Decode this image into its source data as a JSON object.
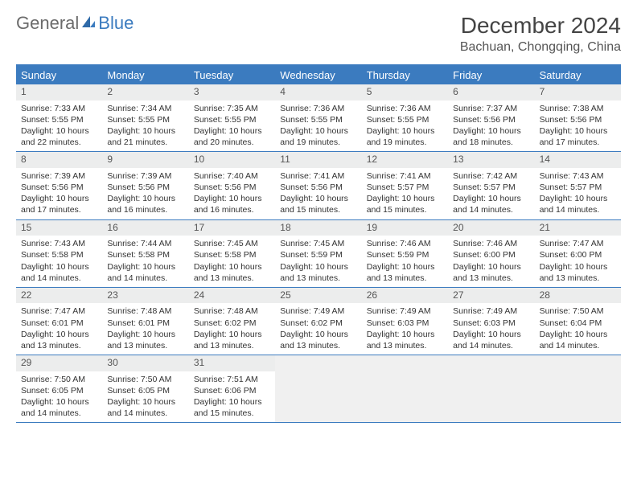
{
  "logo": {
    "part1": "General",
    "part2": "Blue"
  },
  "title": "December 2024",
  "location": "Bachuan, Chongqing, China",
  "colors": {
    "accent": "#3b7bbf",
    "header_text": "#ffffff",
    "daynum_bg": "#eceded",
    "text": "#333333",
    "bg": "#ffffff"
  },
  "day_names": [
    "Sunday",
    "Monday",
    "Tuesday",
    "Wednesday",
    "Thursday",
    "Friday",
    "Saturday"
  ],
  "weeks": [
    [
      {
        "n": "1",
        "sr": "7:33 AM",
        "ss": "5:55 PM",
        "dl": "10 hours and 22 minutes."
      },
      {
        "n": "2",
        "sr": "7:34 AM",
        "ss": "5:55 PM",
        "dl": "10 hours and 21 minutes."
      },
      {
        "n": "3",
        "sr": "7:35 AM",
        "ss": "5:55 PM",
        "dl": "10 hours and 20 minutes."
      },
      {
        "n": "4",
        "sr": "7:36 AM",
        "ss": "5:55 PM",
        "dl": "10 hours and 19 minutes."
      },
      {
        "n": "5",
        "sr": "7:36 AM",
        "ss": "5:55 PM",
        "dl": "10 hours and 19 minutes."
      },
      {
        "n": "6",
        "sr": "7:37 AM",
        "ss": "5:56 PM",
        "dl": "10 hours and 18 minutes."
      },
      {
        "n": "7",
        "sr": "7:38 AM",
        "ss": "5:56 PM",
        "dl": "10 hours and 17 minutes."
      }
    ],
    [
      {
        "n": "8",
        "sr": "7:39 AM",
        "ss": "5:56 PM",
        "dl": "10 hours and 17 minutes."
      },
      {
        "n": "9",
        "sr": "7:39 AM",
        "ss": "5:56 PM",
        "dl": "10 hours and 16 minutes."
      },
      {
        "n": "10",
        "sr": "7:40 AM",
        "ss": "5:56 PM",
        "dl": "10 hours and 16 minutes."
      },
      {
        "n": "11",
        "sr": "7:41 AM",
        "ss": "5:56 PM",
        "dl": "10 hours and 15 minutes."
      },
      {
        "n": "12",
        "sr": "7:41 AM",
        "ss": "5:57 PM",
        "dl": "10 hours and 15 minutes."
      },
      {
        "n": "13",
        "sr": "7:42 AM",
        "ss": "5:57 PM",
        "dl": "10 hours and 14 minutes."
      },
      {
        "n": "14",
        "sr": "7:43 AM",
        "ss": "5:57 PM",
        "dl": "10 hours and 14 minutes."
      }
    ],
    [
      {
        "n": "15",
        "sr": "7:43 AM",
        "ss": "5:58 PM",
        "dl": "10 hours and 14 minutes."
      },
      {
        "n": "16",
        "sr": "7:44 AM",
        "ss": "5:58 PM",
        "dl": "10 hours and 14 minutes."
      },
      {
        "n": "17",
        "sr": "7:45 AM",
        "ss": "5:58 PM",
        "dl": "10 hours and 13 minutes."
      },
      {
        "n": "18",
        "sr": "7:45 AM",
        "ss": "5:59 PM",
        "dl": "10 hours and 13 minutes."
      },
      {
        "n": "19",
        "sr": "7:46 AM",
        "ss": "5:59 PM",
        "dl": "10 hours and 13 minutes."
      },
      {
        "n": "20",
        "sr": "7:46 AM",
        "ss": "6:00 PM",
        "dl": "10 hours and 13 minutes."
      },
      {
        "n": "21",
        "sr": "7:47 AM",
        "ss": "6:00 PM",
        "dl": "10 hours and 13 minutes."
      }
    ],
    [
      {
        "n": "22",
        "sr": "7:47 AM",
        "ss": "6:01 PM",
        "dl": "10 hours and 13 minutes."
      },
      {
        "n": "23",
        "sr": "7:48 AM",
        "ss": "6:01 PM",
        "dl": "10 hours and 13 minutes."
      },
      {
        "n": "24",
        "sr": "7:48 AM",
        "ss": "6:02 PM",
        "dl": "10 hours and 13 minutes."
      },
      {
        "n": "25",
        "sr": "7:49 AM",
        "ss": "6:02 PM",
        "dl": "10 hours and 13 minutes."
      },
      {
        "n": "26",
        "sr": "7:49 AM",
        "ss": "6:03 PM",
        "dl": "10 hours and 13 minutes."
      },
      {
        "n": "27",
        "sr": "7:49 AM",
        "ss": "6:03 PM",
        "dl": "10 hours and 14 minutes."
      },
      {
        "n": "28",
        "sr": "7:50 AM",
        "ss": "6:04 PM",
        "dl": "10 hours and 14 minutes."
      }
    ],
    [
      {
        "n": "29",
        "sr": "7:50 AM",
        "ss": "6:05 PM",
        "dl": "10 hours and 14 minutes."
      },
      {
        "n": "30",
        "sr": "7:50 AM",
        "ss": "6:05 PM",
        "dl": "10 hours and 14 minutes."
      },
      {
        "n": "31",
        "sr": "7:51 AM",
        "ss": "6:06 PM",
        "dl": "10 hours and 15 minutes."
      },
      null,
      null,
      null,
      null
    ]
  ],
  "labels": {
    "sunrise": "Sunrise:",
    "sunset": "Sunset:",
    "daylight": "Daylight:"
  }
}
